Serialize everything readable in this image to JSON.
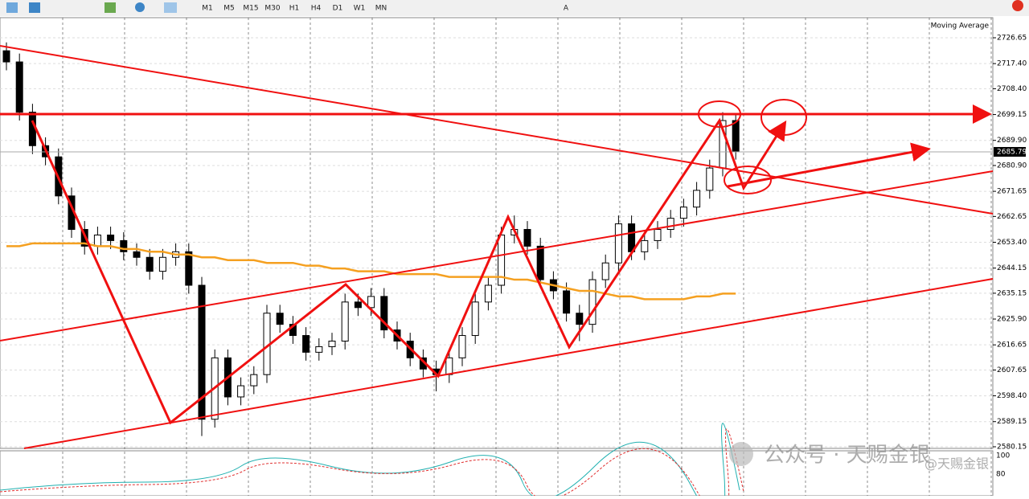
{
  "toolbar": {
    "timeframes": [
      "M1",
      "M5",
      "M15",
      "M30",
      "H1",
      "H4",
      "D1",
      "W1",
      "MN"
    ],
    "text_tool": "A"
  },
  "chart_data": {
    "type": "candlestick",
    "indicator": "Moving Average",
    "open": [
      2722,
      2718,
      2700,
      2688,
      2684,
      2670,
      2658,
      2652,
      2656,
      2654,
      2650,
      2648,
      2643,
      2648,
      2650,
      2638,
      2590,
      2612,
      2598,
      2602,
      2606,
      2628,
      2624,
      2620,
      2614,
      2616,
      2618,
      2632,
      2630,
      2634,
      2622,
      2618,
      2612,
      2608,
      2606,
      2612,
      2620,
      2632,
      2638,
      2656,
      2658,
      2652,
      2640,
      2636,
      2628,
      2624,
      2640,
      2646,
      2660,
      2650,
      2654,
      2658,
      2662,
      2666,
      2672,
      2680,
      2697
    ],
    "high": [
      2725,
      2721,
      2703,
      2691,
      2687,
      2673,
      2661,
      2659,
      2659,
      2657,
      2653,
      2651,
      2651,
      2653,
      2653,
      2641,
      2615,
      2615,
      2605,
      2609,
      2631,
      2631,
      2627,
      2623,
      2619,
      2621,
      2635,
      2635,
      2637,
      2637,
      2625,
      2621,
      2615,
      2611,
      2615,
      2623,
      2635,
      2641,
      2659,
      2663,
      2661,
      2655,
      2643,
      2639,
      2631,
      2643,
      2649,
      2663,
      2663,
      2657,
      2661,
      2665,
      2669,
      2675,
      2683,
      2700,
      2699
    ],
    "low": [
      2715,
      2697,
      2685,
      2681,
      2667,
      2655,
      2649,
      2649,
      2651,
      2647,
      2645,
      2640,
      2640,
      2645,
      2635,
      2584,
      2587,
      2595,
      2595,
      2599,
      2603,
      2621,
      2617,
      2611,
      2611,
      2613,
      2615,
      2627,
      2627,
      2619,
      2615,
      2609,
      2605,
      2600,
      2603,
      2609,
      2617,
      2629,
      2635,
      2653,
      2649,
      2637,
      2633,
      2625,
      2618,
      2621,
      2637,
      2643,
      2647,
      2647,
      2651,
      2655,
      2659,
      2663,
      2669,
      2677,
      2683
    ],
    "close": [
      2718,
      2700,
      2688,
      2684,
      2670,
      2658,
      2652,
      2656,
      2654,
      2650,
      2648,
      2643,
      2648,
      2650,
      2638,
      2590,
      2612,
      2598,
      2602,
      2606,
      2628,
      2624,
      2620,
      2614,
      2616,
      2618,
      2632,
      2630,
      2634,
      2622,
      2618,
      2612,
      2608,
      2606,
      2612,
      2620,
      2632,
      2638,
      2656,
      2658,
      2652,
      2640,
      2636,
      2628,
      2624,
      2640,
      2646,
      2660,
      2650,
      2654,
      2658,
      2662,
      2666,
      2672,
      2680,
      2697,
      2686
    ],
    "moving_average": [
      2652,
      2652,
      2653,
      2653,
      2653,
      2653,
      2653,
      2652,
      2652,
      2651,
      2651,
      2650,
      2650,
      2649,
      2649,
      2648,
      2648,
      2647,
      2647,
      2647,
      2646,
      2646,
      2646,
      2645,
      2645,
      2644,
      2644,
      2643,
      2643,
      2643,
      2642,
      2642,
      2642,
      2642,
      2641,
      2641,
      2641,
      2641,
      2641,
      2640,
      2640,
      2639,
      2638,
      2637,
      2636,
      2636,
      2635,
      2634,
      2634,
      2633,
      2633,
      2633,
      2633,
      2634,
      2634,
      2635,
      2635
    ],
    "ma_color": "#f5a020",
    "up_color": "#ffffff",
    "down_color": "#000000",
    "ylim": [
      2579.57,
      2733.85
    ],
    "yticks": [
      {
        "value": 2726.65,
        "label": "2726.65"
      },
      {
        "value": 2717.4,
        "label": "2717.40"
      },
      {
        "value": 2708.4,
        "label": "2708.40"
      },
      {
        "value": 2699.15,
        "label": "2699.15"
      },
      {
        "value": 2689.9,
        "label": "2689.90"
      },
      {
        "value": 2680.9,
        "label": "2680.90"
      },
      {
        "value": 2671.65,
        "label": "2671.65"
      },
      {
        "value": 2662.65,
        "label": "2662.65"
      },
      {
        "value": 2653.4,
        "label": "2653.40"
      },
      {
        "value": 2644.15,
        "label": "2644.15"
      },
      {
        "value": 2635.15,
        "label": "2635.15"
      },
      {
        "value": 2625.9,
        "label": "2625.90"
      },
      {
        "value": 2616.65,
        "label": "2616.65"
      },
      {
        "value": 2607.65,
        "label": "2607.65"
      },
      {
        "value": 2598.4,
        "label": "2598.40"
      },
      {
        "value": 2589.15,
        "label": "2589.15"
      },
      {
        "value": 2580.15,
        "label": "2580.15"
      }
    ],
    "last_price": 2685.79,
    "grid": true
  },
  "oscillator": {
    "yticks": [
      100,
      80
    ]
  },
  "watermark": {
    "main": "公众号 · 天赐金银",
    "sub": "@天赐金银"
  }
}
